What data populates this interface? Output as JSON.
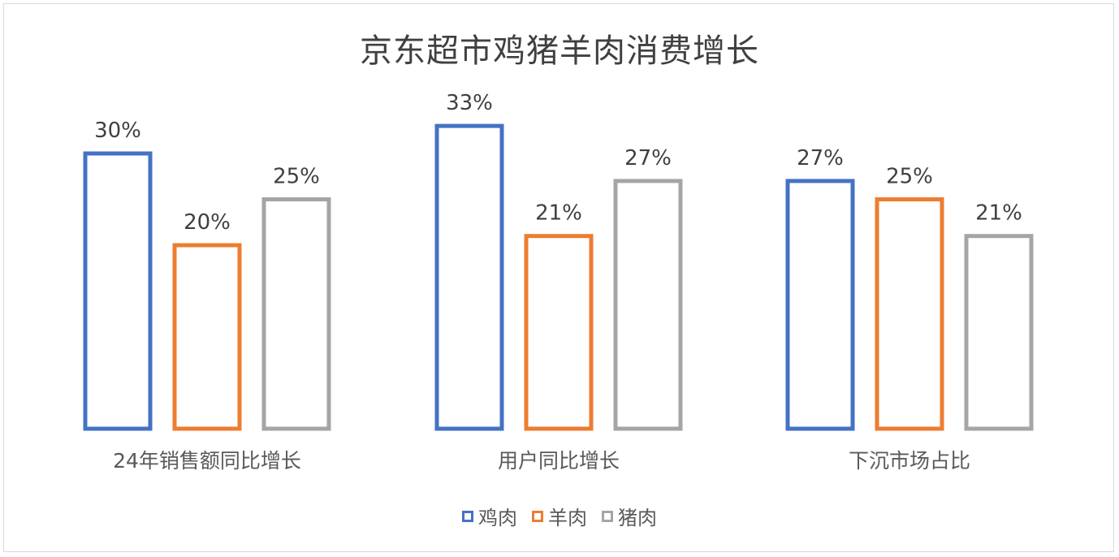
{
  "chart_data": {
    "type": "bar",
    "title": "京东超市鸡猪羊肉消费增长",
    "categories": [
      "24年销售额同比增长",
      "用户同比增长",
      "下沉市场占比"
    ],
    "series": [
      {
        "name": "鸡肉",
        "values": [
          30,
          33,
          27
        ],
        "labels": [
          "30%",
          "33%",
          "27%"
        ],
        "color": "#4472C4"
      },
      {
        "name": "羊肉",
        "values": [
          20,
          21,
          25
        ],
        "labels": [
          "20%",
          "21%",
          "25%"
        ],
        "color": "#ED7D31"
      },
      {
        "name": "猪肉",
        "values": [
          25,
          27,
          21
        ],
        "labels": [
          "25%",
          "27%",
          "21%"
        ],
        "color": "#A5A5A5"
      }
    ],
    "ylim": [
      0,
      100
    ],
    "legend_position": "bottom",
    "grid": false
  }
}
